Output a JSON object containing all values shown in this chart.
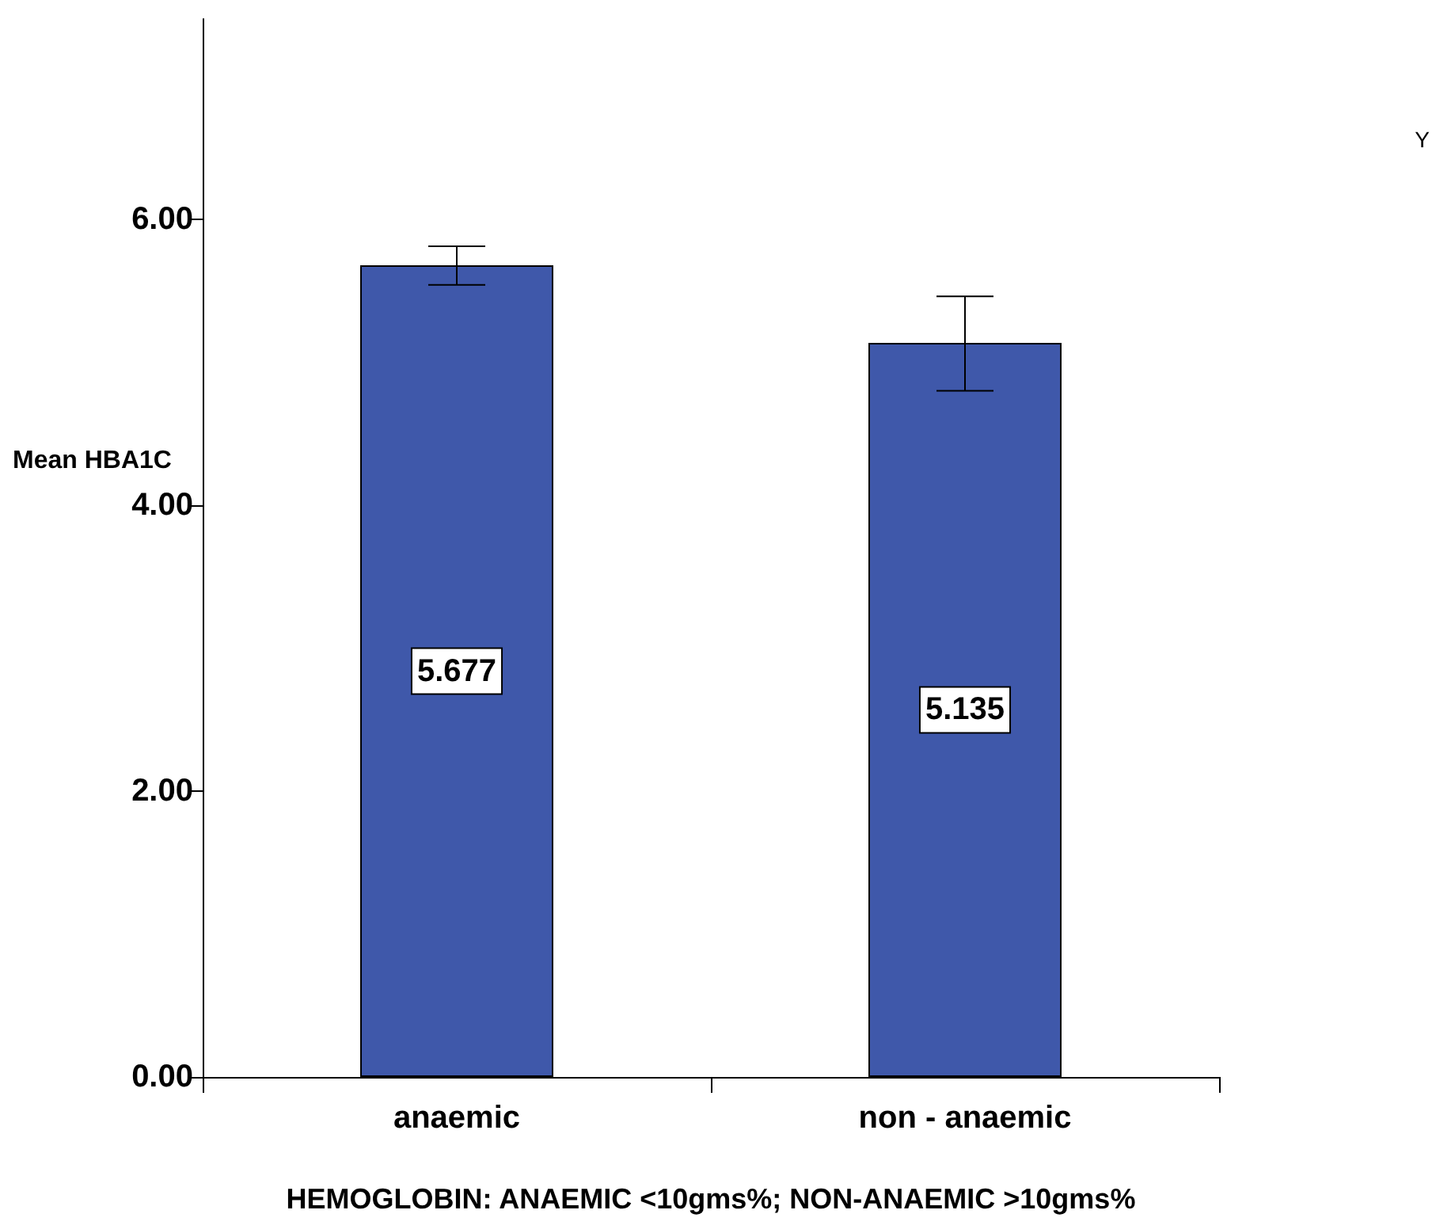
{
  "chart_data": {
    "type": "bar",
    "xlabel": "HEMOGLOBIN: ANAEMIC <10gms%; NON-ANAEMIC >10gms%",
    "ylabel": "Mean HBA1C",
    "categories": [
      "anaemic",
      "non - anaemic"
    ],
    "values": [
      5.677,
      5.135
    ],
    "color": "#3f58aa",
    "errors": [
      [
        5.54,
        5.81
      ],
      [
        4.8,
        5.46
      ]
    ],
    "data_labels": true,
    "ylim": [
      0,
      7.4
    ],
    "yticks": [
      {
        "value": 0,
        "label": "0.00"
      },
      {
        "value": 2,
        "label": "2.00"
      },
      {
        "value": 4,
        "label": "4.00"
      },
      {
        "value": 6,
        "label": "6.00"
      }
    ],
    "grid": false,
    "annotations": [
      "Y"
    ]
  }
}
